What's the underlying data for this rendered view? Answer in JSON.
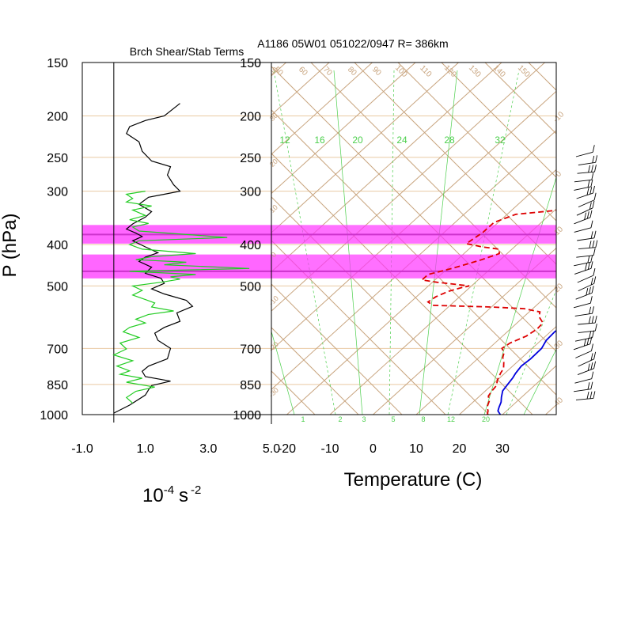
{
  "header": {
    "left_title": "Brch Shear/Stab Terms",
    "right_title": "A1186 05W01 051022/0947 R= 386km"
  },
  "colors": {
    "background": "#ffffff",
    "grid_tan": "#c8a47e",
    "isobar": "#e9c9a2",
    "mixing_ratio": "#4ccf4c",
    "highlight": "#ff33ff",
    "highlight_line": "#cc33cc",
    "temperature": "#0000dd",
    "dewpoint": "#dd0000",
    "shear": "#000000",
    "stability": "#22cc22"
  },
  "chart_data": [
    {
      "type": "line",
      "name": "branch-shear-stability",
      "xlabel_base": "10",
      "xlabel_exp1": "-4",
      "xlabel_unit": "s",
      "xlabel_exp2": "-2",
      "ylabel": "P (hPa)",
      "xlim": [
        -1.0,
        5.0
      ],
      "x_ticks": [
        "-1.0",
        "1.0",
        "3.0",
        "5.0"
      ],
      "x_tick_values": [
        -1.0,
        1.0,
        3.0,
        5.0
      ],
      "y_scale": "log-pressure",
      "ylim": [
        1000,
        150
      ],
      "y_ticks": [
        150,
        200,
        250,
        300,
        400,
        500,
        700,
        850,
        1000
      ],
      "series": [
        {
          "color": "#000000",
          "points": [
            [
              2.1,
              187
            ],
            [
              1.6,
              200
            ],
            [
              1.0,
              205
            ],
            [
              0.5,
              212
            ],
            [
              0.4,
              220
            ],
            [
              0.8,
              230
            ],
            [
              0.9,
              242
            ],
            [
              1.2,
              255
            ],
            [
              1.8,
              263
            ],
            [
              1.7,
              275
            ],
            [
              1.9,
              290
            ],
            [
              2.1,
              300
            ],
            [
              1.6,
              305
            ],
            [
              1.1,
              310
            ],
            [
              0.8,
              322
            ],
            [
              1.2,
              335
            ],
            [
              1.0,
              345
            ],
            [
              0.6,
              358
            ],
            [
              0.4,
              368
            ],
            [
              0.7,
              376
            ],
            [
              0.9,
              383
            ],
            [
              0.6,
              392
            ],
            [
              1.0,
              405
            ],
            [
              1.4,
              418
            ],
            [
              1.0,
              428
            ],
            [
              0.8,
              438
            ],
            [
              1.2,
              452
            ],
            [
              1.0,
              467
            ],
            [
              1.5,
              480
            ],
            [
              1.6,
              493
            ],
            [
              1.2,
              508
            ],
            [
              1.6,
              522
            ],
            [
              2.3,
              540
            ],
            [
              2.5,
              558
            ],
            [
              2.0,
              578
            ],
            [
              2.1,
              605
            ],
            [
              1.6,
              625
            ],
            [
              1.3,
              645
            ],
            [
              1.4,
              670
            ],
            [
              1.8,
              700
            ],
            [
              1.7,
              740
            ],
            [
              1.1,
              770
            ],
            [
              0.9,
              792
            ],
            [
              1.0,
              815
            ],
            [
              1.8,
              835
            ],
            [
              1.2,
              855
            ],
            [
              1.1,
              875
            ],
            [
              1.0,
              900
            ],
            [
              0.5,
              950
            ],
            [
              0.0,
              992
            ]
          ]
        },
        {
          "color": "#22cc22",
          "points": [
            [
              1.0,
              300
            ],
            [
              0.4,
              305
            ],
            [
              0.6,
              312
            ],
            [
              0.4,
              318
            ],
            [
              1.2,
              325
            ],
            [
              0.6,
              332
            ],
            [
              1.0,
              342
            ],
            [
              0.5,
              350
            ],
            [
              1.1,
              357
            ],
            [
              0.6,
              364
            ],
            [
              0.8,
              372
            ],
            [
              3.6,
              385
            ],
            [
              0.8,
              392
            ],
            [
              0.5,
              400
            ],
            [
              0.9,
              410
            ],
            [
              2.6,
              420
            ],
            [
              1.2,
              427
            ],
            [
              0.7,
              434
            ],
            [
              2.3,
              440
            ],
            [
              1.6,
              446
            ],
            [
              4.3,
              455
            ],
            [
              0.5,
              462
            ],
            [
              2.6,
              470
            ],
            [
              1.8,
              476
            ],
            [
              2.1,
              482
            ],
            [
              1.5,
              490
            ],
            [
              0.6,
              500
            ],
            [
              0.9,
              512
            ],
            [
              0.6,
              525
            ],
            [
              1.0,
              538
            ],
            [
              1.3,
              548
            ],
            [
              1.2,
              560
            ],
            [
              1.9,
              572
            ],
            [
              1.1,
              583
            ],
            [
              0.7,
              598
            ],
            [
              1.0,
              610
            ],
            [
              0.5,
              625
            ],
            [
              0.3,
              640
            ],
            [
              0.8,
              660
            ],
            [
              0.2,
              680
            ],
            [
              0.4,
              702
            ],
            [
              0.0,
              725
            ],
            [
              0.6,
              748
            ],
            [
              0.1,
              770
            ],
            [
              0.5,
              790
            ],
            [
              0.2,
              805
            ],
            [
              0.9,
              822
            ],
            [
              0.4,
              840
            ],
            [
              1.3,
              862
            ],
            [
              0.7,
              882
            ],
            [
              0.4,
              912
            ],
            [
              0.6,
              940
            ]
          ]
        }
      ]
    },
    {
      "type": "line",
      "name": "skew-t-sounding",
      "xlabel": "Temperature (C)",
      "xlim": [
        -23,
        42
      ],
      "x_ticks": [
        "-20",
        "-10",
        "0",
        "10",
        "20",
        "30"
      ],
      "x_tick_values": [
        -20,
        -10,
        0,
        10,
        20,
        30
      ],
      "y_scale": "log-pressure",
      "ylim": [
        1000,
        150
      ],
      "y_ticks": [
        150,
        200,
        250,
        300,
        400,
        500,
        700,
        850,
        1000
      ],
      "highlight_bands_hpa": [
        [
          360,
          398
        ],
        [
          422,
          480
        ]
      ],
      "highlight_lines_hpa": [
        379,
        462
      ],
      "mixing_ratio_labels": [
        "12",
        "16",
        "20",
        "24",
        "28",
        "32"
      ],
      "mixing_ratio_labels_bottom": [
        "1",
        "2",
        "3",
        "5",
        "8",
        "12",
        "20"
      ],
      "theta_labels_top": [
        "50",
        "60",
        "70",
        "80",
        "90",
        "100",
        "110",
        "120",
        "130",
        "140",
        "150"
      ],
      "theta_labels_right": [
        "-10",
        "0",
        "10",
        "20",
        "30",
        "40"
      ],
      "theta_labels_left": [
        "40",
        "30",
        "20",
        "10",
        "0",
        "-10",
        "-20",
        "-30"
      ],
      "series": [
        {
          "name": "Temperature",
          "color": "#0000dd",
          "style": "solid",
          "points": [
            [
              29.5,
              1000
            ],
            [
              28.0,
              980
            ],
            [
              27.3,
              960
            ],
            [
              26.5,
              935
            ],
            [
              25.3,
              910
            ],
            [
              24.0,
              880
            ],
            [
              23.5,
              850
            ],
            [
              23.0,
              820
            ],
            [
              22.5,
              800
            ],
            [
              22.0,
              770
            ],
            [
              22.3,
              740
            ],
            [
              22.2,
              700
            ],
            [
              21.2,
              670
            ],
            [
              21.0,
              640
            ],
            [
              21.6,
              610
            ],
            [
              22.3,
              580
            ],
            [
              23.3,
              550
            ],
            [
              23.5,
              525
            ],
            [
              23.0,
              500
            ],
            [
              22.2,
              480
            ],
            [
              21.5,
              460
            ],
            [
              20.5,
              440
            ],
            [
              18.5,
              420
            ],
            [
              17.0,
              400
            ],
            [
              15.0,
              380
            ],
            [
              13.5,
              365
            ],
            [
              12.0,
              350
            ],
            [
              10.5,
              335
            ],
            [
              9.5,
              320
            ],
            [
              8.5,
              305
            ],
            [
              7.5,
              290
            ],
            [
              7.0,
              275
            ],
            [
              6.0,
              262
            ],
            [
              4.8,
              250
            ],
            [
              4.0,
              240
            ],
            [
              3.0,
              228
            ],
            [
              1.5,
              210
            ],
            [
              0.6,
              195
            ],
            [
              0.0,
              180
            ]
          ]
        },
        {
          "name": "Dewpoint",
          "color": "#dd0000",
          "style": "dashed",
          "points": [
            [
              26.5,
              1000
            ],
            [
              25.7,
              980
            ],
            [
              24.5,
              960
            ],
            [
              23.5,
              930
            ],
            [
              22.0,
              905
            ],
            [
              21.5,
              880
            ],
            [
              21.2,
              855
            ],
            [
              20.0,
              830
            ],
            [
              19.0,
              800
            ],
            [
              18.5,
              780
            ],
            [
              17.0,
              755
            ],
            [
              15.5,
              735
            ],
            [
              14.5,
              715
            ],
            [
              13.0,
              700
            ],
            [
              13.5,
              680
            ],
            [
              15.5,
              655
            ],
            [
              16.2,
              630
            ],
            [
              16.0,
              610
            ],
            [
              13.5,
              590
            ],
            [
              12.5,
              575
            ],
            [
              8.0,
              565
            ],
            [
              0.0,
              560
            ],
            [
              -14.0,
              555
            ],
            [
              -16.0,
              545
            ],
            [
              -15.5,
              530
            ],
            [
              -14.0,
              515
            ],
            [
              -12.0,
              505
            ],
            [
              -10.5,
              500
            ],
            [
              -14.5,
              495
            ],
            [
              -19.0,
              490
            ],
            [
              -23.0,
              484
            ],
            [
              -23.0,
              470
            ],
            [
              -19.0,
              455
            ],
            [
              -14.5,
              435
            ],
            [
              -11.8,
              420
            ],
            [
              -13.0,
              410
            ],
            [
              -17.5,
              405
            ],
            [
              -22.0,
              398
            ],
            [
              -21.0,
              375
            ],
            [
              -21.0,
              355
            ],
            [
              -18.0,
              340
            ],
            [
              -10.0,
              333
            ],
            [
              -1.0,
              328
            ],
            [
              4.0,
              322
            ],
            [
              6.5,
              312
            ],
            [
              6.8,
              300
            ],
            [
              6.0,
              285
            ],
            [
              5.0,
              270
            ],
            [
              3.5,
              250
            ],
            [
              2.5,
              238
            ],
            [
              0.5,
              226
            ],
            [
              -1.5,
              215
            ]
          ]
        }
      ]
    }
  ]
}
